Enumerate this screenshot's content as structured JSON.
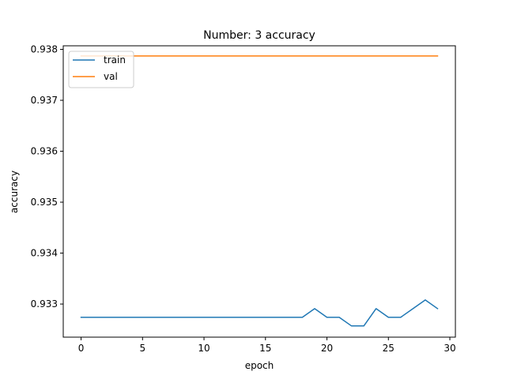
{
  "chart_data": {
    "type": "line",
    "title": "Number: 3 accuracy",
    "xlabel": "epoch",
    "ylabel": "accuracy",
    "xlim": [
      -1.45,
      30.45
    ],
    "ylim": [
      0.93235,
      0.93807
    ],
    "xticks": [
      0,
      5,
      10,
      15,
      20,
      25,
      30
    ],
    "yticks": [
      0.933,
      0.934,
      0.935,
      0.936,
      0.937,
      0.938
    ],
    "legend_position": "top-left",
    "grid": false,
    "series": [
      {
        "name": "train",
        "color": "#1f77b4",
        "x": [
          0,
          1,
          2,
          3,
          4,
          5,
          6,
          7,
          8,
          9,
          10,
          11,
          12,
          13,
          14,
          15,
          16,
          17,
          18,
          19,
          20,
          21,
          22,
          23,
          24,
          25,
          26,
          27,
          28,
          29
        ],
        "y": [
          0.93274,
          0.93274,
          0.93274,
          0.93274,
          0.93274,
          0.93274,
          0.93274,
          0.93274,
          0.93274,
          0.93274,
          0.93274,
          0.93274,
          0.93274,
          0.93274,
          0.93274,
          0.93274,
          0.93274,
          0.93274,
          0.93274,
          0.93291,
          0.93274,
          0.93274,
          0.93257,
          0.93257,
          0.93291,
          0.93274,
          0.93274,
          0.93291,
          0.93308,
          0.93291
        ]
      },
      {
        "name": "val",
        "color": "#ff7f0e",
        "x": [
          0,
          1,
          2,
          3,
          4,
          5,
          6,
          7,
          8,
          9,
          10,
          11,
          12,
          13,
          14,
          15,
          16,
          17,
          18,
          19,
          20,
          21,
          22,
          23,
          24,
          25,
          26,
          27,
          28,
          29
        ],
        "y": [
          0.93787,
          0.93787,
          0.93787,
          0.93787,
          0.93787,
          0.93787,
          0.93787,
          0.93787,
          0.93787,
          0.93787,
          0.93787,
          0.93787,
          0.93787,
          0.93787,
          0.93787,
          0.93787,
          0.93787,
          0.93787,
          0.93787,
          0.93787,
          0.93787,
          0.93787,
          0.93787,
          0.93787,
          0.93787,
          0.93787,
          0.93787,
          0.93787,
          0.93787,
          0.93787
        ]
      }
    ]
  }
}
